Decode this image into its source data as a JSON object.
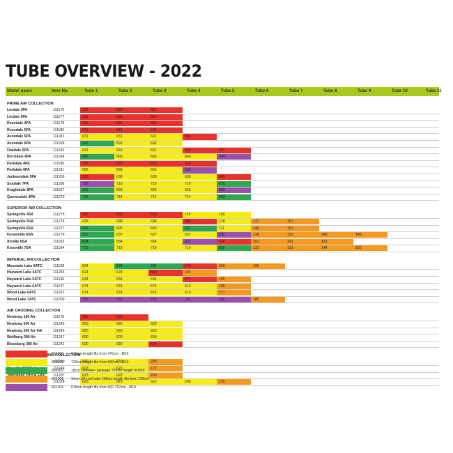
{
  "title": "TUBE OVERVIEW - 2022",
  "colors": {
    "red": "#e8322c",
    "yellow": "#f6ec14",
    "green": "#2fa84f",
    "orange": "#f49a20",
    "purple": "#9b51a9",
    "none": "transparent",
    "header": "#a8c81e"
  },
  "headers": [
    "Model name",
    "Item No.",
    "Tube 1",
    "Tube 2",
    "Tube 3",
    "Tube 4",
    "Tube 5",
    "Tube 6",
    "Tube 7",
    "Tube 8",
    "Tube 9",
    "Tube 10",
    "Tube 11"
  ],
  "sections": [
    {
      "title": "PRIME AIR COLLECTION",
      "rows": [
        {
          "name": "Lindale 3PA",
          "item": "111176",
          "cells": [
            [
              "532",
              "r"
            ],
            [
              "532",
              "r"
            ],
            [
              "487",
              "r"
            ]
          ]
        },
        {
          "name": "Lindale 5PA",
          "item": "111177",
          "cells": [
            [
              "581",
              "r"
            ],
            [
              "581",
              "r"
            ],
            [
              "524",
              "r"
            ]
          ]
        },
        {
          "name": "Rosedale 4PA",
          "item": "111178",
          "cells": [
            [
              "536",
              "r"
            ],
            [
              "536",
              "r"
            ],
            [
              "486",
              "r"
            ]
          ]
        },
        {
          "name": "Rosedale 5PA",
          "item": "111180",
          "cells": [
            [
              "581",
              "r"
            ],
            [
              "581",
              "r"
            ],
            [
              "524",
              "r"
            ]
          ]
        },
        {
          "name": "Avondale 5PA",
          "item": "111182",
          "cells": [
            [
              "631",
              "y"
            ],
            [
              "631",
              "y"
            ],
            [
              "631",
              "y"
            ],
            [
              "554",
              "r"
            ]
          ]
        },
        {
          "name": "Avondale 6PA",
          "item": "111268",
          "cells": [
            [
              "692",
              "g"
            ],
            [
              "692",
              "y"
            ],
            [
              "692",
              "y"
            ]
          ]
        },
        {
          "name": "Oakdale 5PA",
          "item": "111183",
          "cells": [
            [
              "631",
              "y"
            ],
            [
              "631",
              "y"
            ],
            [
              "631",
              "y"
            ],
            [
              "569",
              "r"
            ],
            [
              "481",
              "r"
            ]
          ]
        },
        {
          "name": "Birchdale 6PA",
          "item": "111184",
          "cells": [
            [
              "666",
              "g"
            ],
            [
              "666",
              "y"
            ],
            [
              "666",
              "y"
            ],
            [
              "666",
              "y"
            ],
            [
              "604",
              "p"
            ]
          ]
        },
        {
          "name": "Parkdale 4PA",
          "item": "111180",
          "cells": [
            [
              "576",
              "r"
            ],
            [
              "576",
              "r"
            ],
            [
              "576",
              "r"
            ],
            [
              "516",
              "r"
            ]
          ]
        },
        {
          "name": "Parkdale 6PA",
          "item": "111181",
          "cells": [
            [
              "656",
              "y"
            ],
            [
              "656",
              "y"
            ],
            [
              "656",
              "y"
            ],
            [
              "598",
              "p"
            ]
          ]
        },
        {
          "name": "Jacksondale 5PA",
          "item": "111269",
          "cells": [
            [
              "610",
              "r"
            ],
            [
              "638",
              "y"
            ],
            [
              "638",
              "y"
            ],
            [
              "638",
              "y"
            ],
            [
              "569",
              "r"
            ]
          ]
        },
        {
          "name": "Sundale 7PA",
          "item": "111188",
          "cells": [
            [
              "719",
              "p"
            ],
            [
              "719",
              "y"
            ],
            [
              "719",
              "y"
            ],
            [
              "719",
              "y"
            ],
            [
              "678",
              "g"
            ]
          ]
        },
        {
          "name": "Knightdale 8PA",
          "item": "111187",
          "cells": [
            [
              "663",
              "g"
            ],
            [
              "663",
              "y"
            ],
            [
              "663",
              "y"
            ],
            [
              "663",
              "y"
            ],
            [
              "608",
              "p"
            ]
          ]
        },
        {
          "name": "Queensdale 8PA",
          "item": "111270",
          "cells": [
            [
              "714",
              "g"
            ],
            [
              "714",
              "y"
            ],
            [
              "714",
              "y"
            ],
            [
              "714",
              "y"
            ],
            [
              "658",
              "g"
            ]
          ]
        }
      ]
    },
    {
      "title": "SUPERIOR AIR COLLECTION",
      "rows": [
        {
          "name": "Springville 4SA",
          "item": "111275",
          "cells": [
            [
              "595",
              "r"
            ],
            [
              "595",
              "r"
            ],
            [
              "539",
              "r"
            ],
            [
              "155",
              "y"
            ],
            [
              "165",
              "y"
            ]
          ]
        },
        {
          "name": "Springville 5SA",
          "item": "111276",
          "cells": [
            [
              "638",
              "y"
            ],
            [
              "638",
              "y"
            ],
            [
              "638",
              "y"
            ],
            [
              "586",
              "r"
            ],
            [
              "128",
              "y"
            ],
            [
              "137",
              "o"
            ],
            [
              "151",
              "o"
            ]
          ]
        },
        {
          "name": "Springville 6SA",
          "item": "111277",
          "cells": [
            [
              "695",
              "g"
            ],
            [
              "695",
              "y"
            ],
            [
              "695",
              "y"
            ],
            [
              "647",
              "g"
            ],
            [
              "111",
              "y"
            ],
            [
              "146",
              "o"
            ],
            [
              "151",
              "o"
            ]
          ]
        },
        {
          "name": "Forestville 6SA",
          "item": "111279",
          "cells": [
            [
              "637",
              "g"
            ],
            [
              "637",
              "y"
            ],
            [
              "637",
              "y"
            ],
            [
              "637",
              "y"
            ],
            [
              "596",
              "p"
            ],
            [
              "138",
              "o"
            ],
            [
              "151",
              "o"
            ],
            [
              "145",
              "o"
            ],
            [
              "149",
              "o"
            ]
          ]
        },
        {
          "name": "Airville 6SA",
          "item": "111193",
          "cells": [
            [
              "654",
              "g"
            ],
            [
              "654",
              "y"
            ],
            [
              "654",
              "y"
            ],
            [
              "601",
              "p"
            ],
            [
              "506",
              "r"
            ],
            [
              "181",
              "o"
            ],
            [
              "191",
              "o"
            ],
            [
              "181",
              "o"
            ]
          ]
        },
        {
          "name": "Knoxville 7SA",
          "item": "111194",
          "cells": [
            [
              "719",
              "g"
            ],
            [
              "719",
              "y"
            ],
            [
              "719",
              "y"
            ],
            [
              "719",
              "y"
            ],
            [
              "668",
              "g"
            ],
            [
              "133",
              "o"
            ],
            [
              "131",
              "o"
            ],
            [
              "144",
              "o"
            ],
            [
              "152",
              "o"
            ]
          ]
        }
      ]
    },
    {
      "title": "IMPERIAL AIR COLLECTION",
      "rows": [
        {
          "name": "Mountain Lake 5ATC",
          "item": "111198",
          "cells": [
            [
              "634",
              "y"
            ],
            [
              "634",
              "g"
            ],
            [
              "634",
              "g"
            ],
            [
              "573",
              "r"
            ],
            [
              "550",
              "o"
            ],
            [
              "190",
              "o"
            ]
          ]
        },
        {
          "name": "Hayward Lake 4ATC",
          "item": "111266",
          "cells": [
            [
              "624",
              "y"
            ],
            [
              "624",
              "y"
            ],
            [
              "563",
              "r"
            ],
            [
              "182",
              "o"
            ]
          ]
        },
        {
          "name": "Hayward Lake 5ATC",
          "item": "111196",
          "cells": [
            [
              "634",
              "y"
            ],
            [
              "634",
              "y"
            ],
            [
              "634",
              "y"
            ],
            [
              "573",
              "r"
            ],
            [
              "185",
              "o"
            ]
          ]
        },
        {
          "name": "Hayward Lake 6ATC",
          "item": "111197",
          "cells": [
            [
              "674",
              "y"
            ],
            [
              "674",
              "y"
            ],
            [
              "674",
              "y"
            ],
            [
              "613",
              "y"
            ],
            [
              "180",
              "o"
            ]
          ]
        },
        {
          "name": "Wood Lake 6ATC",
          "item": "111267",
          "cells": [
            [
              "674",
              "y"
            ],
            [
              "674",
              "y"
            ],
            [
              "674",
              "y"
            ],
            [
              "613",
              "y"
            ],
            [
              "177",
              "o"
            ]
          ]
        },
        {
          "name": "Wood Lake 7ATC",
          "item": "111200",
          "cells": [
            [
              "752",
              "p"
            ],
            [
              "752",
              "p"
            ],
            [
              "752",
              "p"
            ],
            [
              "752",
              "p"
            ],
            [
              "680",
              "p"
            ],
            [
              "185",
              "o"
            ]
          ]
        }
      ]
    },
    {
      "title": "AIR CRUISING COLLECTION",
      "rows": [
        {
          "name": "Newburg 160 Air",
          "item": "111170",
          "cells": [
            [
              "590",
              "r"
            ],
            [
              "590",
              "r"
            ]
          ]
        },
        {
          "name": "Newburg 240 Air",
          "item": "111245",
          "cells": [
            [
              "620",
              "y"
            ],
            [
              "620",
              "y"
            ],
            [
              "620",
              "y"
            ]
          ]
        },
        {
          "name": "Newburg 240 Air Tall",
          "item": "111246",
          "cells": [
            [
              "620",
              "y"
            ],
            [
              "620",
              "y"
            ],
            [
              "620",
              "y"
            ]
          ]
        },
        {
          "name": "Wolfburg 380 Air",
          "item": "111247",
          "cells": [
            [
              "600",
              "y"
            ],
            [
              "600",
              "y"
            ],
            [
              "600",
              "y"
            ]
          ]
        },
        {
          "name": "Blossburg 380 Air",
          "item": "111242",
          "cells": [
            [
              "620",
              "y"
            ],
            [
              "620",
              "y"
            ],
            [
              "530",
              "r"
            ]
          ]
        }
      ]
    },
    {
      "title": "SUPERIOR AIR TOURING COLLECTION",
      "rows": [
        {
          "name": "Parkville 200SA",
          "item": "111250",
          "cells": [
            [
              "630",
              "y"
            ],
            [
              "630",
              "y"
            ],
            [
              "200",
              "o"
            ]
          ]
        },
        {
          "name": "Meyville 260SA flex",
          "item": "111249",
          "cells": [
            [
              "623",
              "y"
            ],
            [
              "623",
              "y"
            ],
            [
              "172",
              "o"
            ]
          ]
        },
        {
          "name": "Jonesville 290SA Flex",
          "item": "111297",
          "cells": [
            [
              "623",
              "y"
            ],
            [
              "623",
              "y"
            ],
            [
              "200",
              "o"
            ]
          ]
        },
        {
          "name": "Jonesville 440SA Flex",
          "item": "111298",
          "cells": [
            [
              "623",
              "y"
            ],
            [
              "623",
              "y"
            ],
            [
              "623",
              "y"
            ],
            [
              "205",
              "y"
            ],
            [
              "155",
              "o"
            ]
          ]
        }
      ]
    }
  ],
  "legend": [
    {
      "color": "r",
      "code": "651005",
      "desc": "615cm length fits from 470cm - Ø16"
    },
    {
      "color": "y",
      "code": "651006",
      "desc": "725cm length fits from 600cm - Ø16"
    },
    {
      "color": "g",
      "code": "651007",
      "desc": "18cm Diameter package 725cm length fit Ø18"
    },
    {
      "color": "o",
      "code": "651008",
      "desc": "Short SA roof tube 200cm length fits from 105cm"
    },
    {
      "color": "p",
      "code": "651104",
      "desc": "615cm length fits from 600-752cm - Ø18"
    }
  ]
}
